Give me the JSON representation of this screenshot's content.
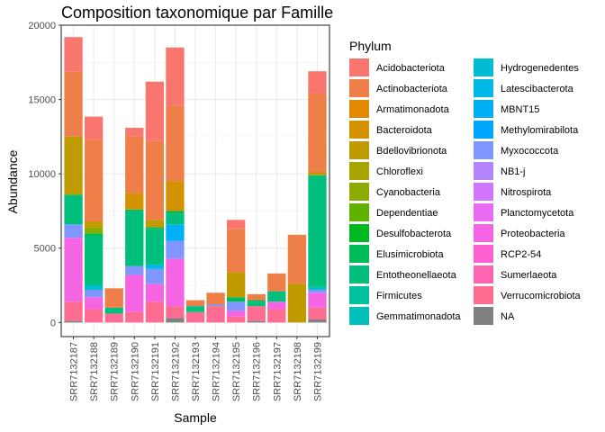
{
  "chart_data": {
    "type": "bar",
    "stacked": true,
    "title": "Composition taxonomique par Famille",
    "xlabel": "Sample",
    "ylabel": "Abundance",
    "legend_title": "Phylum",
    "legend_position": "right",
    "grid": true,
    "ylim": [
      -950,
      20000
    ],
    "yticks": [
      0,
      5000,
      10000,
      15000,
      20000
    ],
    "categories": [
      "SRR7132187",
      "SRR7132188",
      "SRR7132189",
      "SRR7132190",
      "SRR7132191",
      "SRR7132192",
      "SRR7132193",
      "SRR7132194",
      "SRR7132195",
      "SRR7132196",
      "SRR7132197",
      "SRR7132198",
      "SRR7132199"
    ],
    "series": [
      {
        "name": "Acidobacteriota",
        "color": "#F8766D",
        "values": [
          2300,
          1550,
          0,
          600,
          4000,
          3900,
          0,
          0,
          600,
          0,
          0,
          0,
          1500
        ]
      },
      {
        "name": "Actinobacteriota",
        "color": "#EF7F48",
        "values": [
          4400,
          5500,
          1300,
          3800,
          5300,
          5100,
          400,
          800,
          2900,
          400,
          1200,
          3300,
          5300
        ]
      },
      {
        "name": "Armatimonadota",
        "color": "#E38900",
        "values": [
          0,
          0,
          0,
          0,
          0,
          0,
          0,
          0,
          0,
          0,
          0,
          0,
          0
        ]
      },
      {
        "name": "Bacteroidota",
        "color": "#D49200",
        "values": [
          0,
          0,
          0,
          1100,
          0,
          2000,
          0,
          0,
          0,
          0,
          0,
          0,
          0
        ]
      },
      {
        "name": "Bdellovibrionota",
        "color": "#C09B00",
        "values": [
          3900,
          400,
          0,
          0,
          500,
          0,
          0,
          0,
          1700,
          0,
          0,
          2600,
          200
        ]
      },
      {
        "name": "Chloroflexi",
        "color": "#A9A400",
        "values": [
          0,
          0,
          0,
          0,
          0,
          0,
          0,
          0,
          0,
          0,
          0,
          0,
          0
        ]
      },
      {
        "name": "Cyanobacteria",
        "color": "#8BAB00",
        "values": [
          0,
          400,
          0,
          0,
          0,
          0,
          0,
          0,
          0,
          0,
          0,
          0,
          0
        ]
      },
      {
        "name": "Dependentiae",
        "color": "#61B200",
        "values": [
          0,
          0,
          0,
          0,
          0,
          0,
          0,
          0,
          0,
          0,
          0,
          0,
          0
        ]
      },
      {
        "name": "Desulfobacterota",
        "color": "#00B81F",
        "values": [
          0,
          0,
          0,
          0,
          0,
          0,
          0,
          0,
          0,
          0,
          0,
          0,
          0
        ]
      },
      {
        "name": "Elusimicrobiota",
        "color": "#00BC56",
        "values": [
          100,
          200,
          0,
          100,
          100,
          200,
          0,
          0,
          300,
          100,
          0,
          0,
          0
        ]
      },
      {
        "name": "Entotheonellaeota",
        "color": "#00BF7D",
        "values": [
          1900,
          3300,
          400,
          3700,
          2400,
          700,
          400,
          0,
          0,
          300,
          700,
          0,
          7500
        ]
      },
      {
        "name": "Firmicutes",
        "color": "#00C19F",
        "values": [
          0,
          0,
          0,
          0,
          0,
          0,
          0,
          0,
          0,
          0,
          0,
          0,
          0
        ]
      },
      {
        "name": "Gemmatimonadota",
        "color": "#00C0BC",
        "values": [
          0,
          0,
          0,
          0,
          0,
          0,
          0,
          0,
          0,
          0,
          0,
          0,
          200
        ]
      },
      {
        "name": "Hydrogenedentes",
        "color": "#00BDD4",
        "values": [
          0,
          300,
          0,
          0,
          0,
          0,
          0,
          0,
          0,
          0,
          0,
          0,
          0
        ]
      },
      {
        "name": "Latescibacterota",
        "color": "#00B8E7",
        "values": [
          0,
          0,
          0,
          0,
          300,
          0,
          0,
          0,
          0,
          0,
          0,
          0,
          0
        ]
      },
      {
        "name": "MBNT15",
        "color": "#00B0F6",
        "values": [
          0,
          0,
          0,
          0,
          0,
          1100,
          0,
          0,
          0,
          0,
          0,
          0,
          0
        ]
      },
      {
        "name": "Methylomirabilota",
        "color": "#00A5FE",
        "values": [
          0,
          0,
          0,
          0,
          0,
          0,
          0,
          0,
          0,
          0,
          0,
          0,
          0
        ]
      },
      {
        "name": "Myxococcota",
        "color": "#7F96FF",
        "values": [
          900,
          500,
          0,
          600,
          1000,
          1200,
          0,
          100,
          600,
          0,
          0,
          0,
          200
        ]
      },
      {
        "name": "NB1-j",
        "color": "#B385FF",
        "values": [
          0,
          0,
          0,
          0,
          0,
          0,
          0,
          0,
          0,
          0,
          0,
          0,
          0
        ]
      },
      {
        "name": "Nitrospirota",
        "color": "#D177FF",
        "values": [
          0,
          0,
          0,
          0,
          0,
          0,
          0,
          0,
          0,
          0,
          0,
          0,
          0
        ]
      },
      {
        "name": "Planctomycetota",
        "color": "#E76BF3",
        "values": [
          0,
          0,
          0,
          0,
          0,
          0,
          0,
          0,
          0,
          0,
          0,
          0,
          0
        ]
      },
      {
        "name": "Proteobacteria",
        "color": "#F564E3",
        "values": [
          4300,
          800,
          0,
          2500,
          1200,
          3200,
          0,
          0,
          400,
          0,
          500,
          0,
          1000
        ]
      },
      {
        "name": "RCP2-54",
        "color": "#FD61D1",
        "values": [
          0,
          0,
          0,
          0,
          0,
          0,
          0,
          0,
          0,
          0,
          0,
          0,
          0
        ]
      },
      {
        "name": "Sumerlaeota",
        "color": "#FF64B0",
        "values": [
          0,
          0,
          0,
          0,
          0,
          0,
          0,
          0,
          0,
          0,
          0,
          0,
          0
        ]
      },
      {
        "name": "Verrucomicrobiota",
        "color": "#FF6C91",
        "values": [
          1300,
          900,
          600,
          700,
          1400,
          800,
          700,
          1100,
          400,
          1000,
          900,
          0,
          800
        ]
      },
      {
        "name": "NA",
        "color": "#808080",
        "values": [
          100,
          0,
          0,
          0,
          0,
          300,
          0,
          0,
          0,
          100,
          0,
          0,
          200
        ]
      }
    ]
  }
}
